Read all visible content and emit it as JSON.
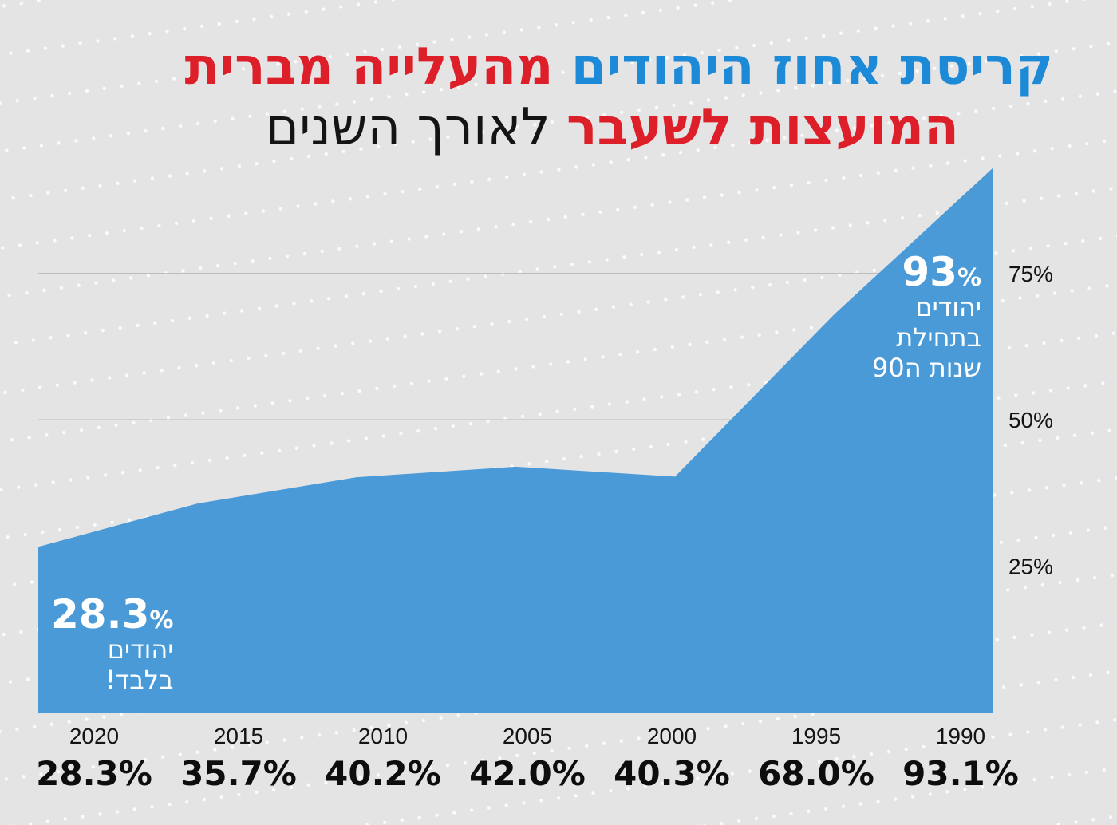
{
  "title": {
    "line1_part_blue": "קריסת אחוז היהודים",
    "line1_part_red": "מהעלייה מברית",
    "line2_part_red": "המועצות לשעבר",
    "line2_part_black": "לאורך השנים"
  },
  "callouts": {
    "start": {
      "value": "93",
      "unit": "%",
      "lines": [
        "יהודים",
        "בתחילת",
        "שנות ה90"
      ]
    },
    "end": {
      "value": "28.3",
      "unit": "%",
      "lines": [
        "יהודים",
        "בלבד!"
      ]
    }
  },
  "colors": {
    "background": "#e4e4e5",
    "area": "#4a9ad8",
    "title_blue": "#1c8ad6",
    "title_red": "#dd1f2a",
    "gridline": "#bdbdbd"
  },
  "chart_data": {
    "type": "area",
    "x": [
      "2020",
      "2015",
      "2010",
      "2005",
      "2000",
      "1995",
      "1990"
    ],
    "values": [
      28.3,
      35.7,
      40.2,
      42.0,
      40.3,
      68.0,
      93.1
    ],
    "value_labels": [
      "28.3%",
      "35.7%",
      "40.2%",
      "42.0%",
      "40.3%",
      "68.0%",
      "93.1%"
    ],
    "y_ticks": [
      25,
      50,
      75
    ],
    "y_tick_labels": [
      "25%",
      "50%",
      "75%"
    ],
    "ylim": [
      0,
      93.1
    ],
    "y_axis_side": "right",
    "x_axis_order": "descending, right-to-left",
    "grid": true,
    "legend": "none"
  }
}
